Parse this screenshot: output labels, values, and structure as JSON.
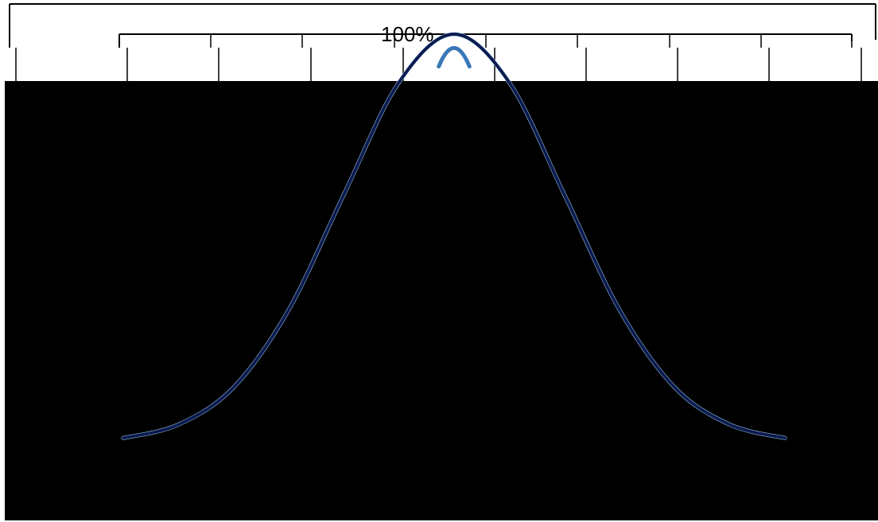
{
  "chart_data": {
    "type": "line",
    "title": "",
    "xlabel": "",
    "ylabel": "",
    "annotations": [
      {
        "text": "100%",
        "x": 0,
        "y": 100
      }
    ],
    "x": [
      -3,
      -2.5,
      -2,
      -1.5,
      -1,
      -0.5,
      0,
      0.5,
      1,
      1.5,
      2,
      2.5,
      3
    ],
    "series": [
      {
        "values": [
          1.1,
          4.4,
          13.5,
          32.5,
          60.7,
          88.2,
          100,
          88.2,
          60.7,
          32.5,
          13.5,
          4.4,
          1.1
        ]
      }
    ],
    "xlim": [
      -3,
      3
    ],
    "ylim": [
      0,
      100
    ],
    "grid": false,
    "legend": "none",
    "colors": {
      "background": "#000000",
      "frame": "#ffffff",
      "tick": "#000000",
      "curve": "#0c1a4f",
      "curve_top_light": "#a9d8f3",
      "curve_top_dark": "#3a78b8"
    }
  }
}
